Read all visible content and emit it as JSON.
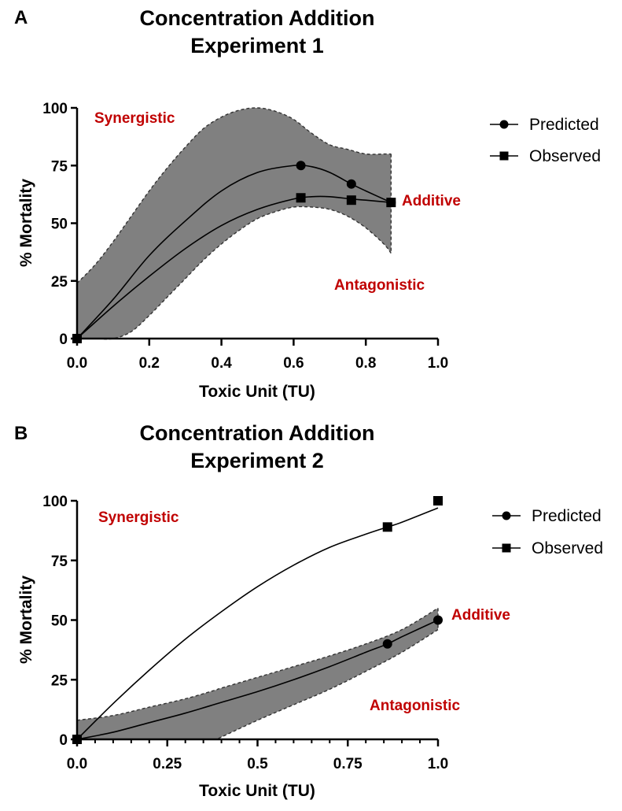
{
  "figure": {
    "colors": {
      "band_fill": "#808080",
      "region_label": "#c00000",
      "line": "#000000"
    }
  },
  "chart_data": [
    {
      "panel": "A",
      "type": "line",
      "title": [
        "Concentration Addition",
        "Experiment 1"
      ],
      "xlabel": "Toxic Unit (TU)",
      "ylabel": "% Mortality",
      "xlim": [
        0,
        1.0
      ],
      "ylim": [
        0,
        100
      ],
      "xticks": [
        0,
        0.2,
        0.4,
        0.6,
        0.8,
        1.0
      ],
      "xtick_labels": [
        "0.0",
        "0.2",
        "0.4",
        "0.6",
        "0.8",
        "1.0"
      ],
      "xminor": [],
      "yticks": [
        0,
        25,
        50,
        75,
        100
      ],
      "ytick_labels": [
        "0",
        "25",
        "50",
        "75",
        "100"
      ],
      "legend": [
        {
          "label": "Predicted",
          "marker": "circle"
        },
        {
          "label": "Observed",
          "marker": "square"
        }
      ],
      "region_labels": {
        "synergistic": "Synergistic",
        "additive": "Additive",
        "antagonistic": "Antagonistic"
      },
      "series": [
        {
          "name": "Predicted",
          "marker": "circle",
          "x": [
            0,
            0.62,
            0.76,
            0.87
          ],
          "y": [
            0,
            75,
            67,
            59
          ]
        },
        {
          "name": "Observed",
          "marker": "square",
          "x": [
            0,
            0.62,
            0.76,
            0.87
          ],
          "y": [
            0,
            61,
            60,
            59
          ]
        }
      ],
      "fit_curves": [
        {
          "name": "Predicted fit",
          "x": [
            0,
            0.1,
            0.2,
            0.3,
            0.4,
            0.5,
            0.6,
            0.65,
            0.7,
            0.76,
            0.8,
            0.87
          ],
          "y": [
            0,
            17,
            36,
            51,
            64,
            72,
            75,
            74.5,
            72,
            67,
            64,
            59
          ]
        },
        {
          "name": "Observed fit",
          "x": [
            0,
            0.1,
            0.2,
            0.3,
            0.4,
            0.5,
            0.6,
            0.65,
            0.7,
            0.76,
            0.8,
            0.87
          ],
          "y": [
            0,
            14,
            27,
            39,
            49,
            56,
            60.5,
            61.5,
            61.5,
            60.5,
            60,
            59
          ]
        }
      ],
      "confidence_band": {
        "x": [
          0,
          0.05,
          0.1,
          0.15,
          0.2,
          0.25,
          0.3,
          0.35,
          0.4,
          0.45,
          0.5,
          0.55,
          0.6,
          0.65,
          0.7,
          0.75,
          0.8,
          0.85,
          0.87
        ],
        "upper": [
          24,
          32,
          42,
          53,
          64,
          74,
          83,
          91,
          96,
          99,
          100,
          98.5,
          95,
          89,
          84,
          82,
          80,
          80,
          80
        ],
        "lower": [
          0,
          0,
          0,
          3,
          10,
          18,
          26,
          34,
          41,
          47,
          52,
          55,
          57,
          57,
          56,
          53,
          48,
          41,
          37
        ]
      }
    },
    {
      "panel": "B",
      "type": "line",
      "title": [
        "Concentration Addition",
        "Experiment 2"
      ],
      "xlabel": "Toxic Unit (TU)",
      "ylabel": "% Mortality",
      "xlim": [
        0,
        1.0
      ],
      "ylim": [
        0,
        100
      ],
      "xticks": [
        0,
        0.25,
        0.5,
        0.75,
        1.0
      ],
      "xtick_labels": [
        "0.0",
        "0.25",
        "0.5",
        "0.75",
        "1.0"
      ],
      "xminor": [
        0.05,
        0.1,
        0.15,
        0.2,
        0.3,
        0.35,
        0.4,
        0.45,
        0.55,
        0.6,
        0.65,
        0.7,
        0.8,
        0.85,
        0.9,
        0.95
      ],
      "yticks": [
        0,
        25,
        50,
        75,
        100
      ],
      "ytick_labels": [
        "0",
        "25",
        "50",
        "75",
        "100"
      ],
      "legend": [
        {
          "label": "Predicted",
          "marker": "circle"
        },
        {
          "label": "Observed",
          "marker": "square"
        }
      ],
      "region_labels": {
        "synergistic": "Synergistic",
        "additive": "Additive",
        "antagonistic": "Antagonistic"
      },
      "series": [
        {
          "name": "Predicted",
          "marker": "circle",
          "x": [
            0,
            0.86,
            1.0
          ],
          "y": [
            0,
            40,
            50
          ]
        },
        {
          "name": "Observed",
          "marker": "square",
          "x": [
            0,
            0.86,
            1.0
          ],
          "y": [
            0,
            89,
            100
          ]
        }
      ],
      "fit_curves": [
        {
          "name": "Predicted fit",
          "x": [
            0,
            0.1,
            0.2,
            0.3,
            0.4,
            0.5,
            0.6,
            0.7,
            0.8,
            0.86,
            0.9,
            1.0
          ],
          "y": [
            0,
            3,
            7,
            11,
            15.5,
            20,
            25,
            30.5,
            36.5,
            40,
            43,
            50
          ]
        },
        {
          "name": "Observed fit",
          "x": [
            0,
            0.1,
            0.2,
            0.3,
            0.4,
            0.5,
            0.6,
            0.7,
            0.8,
            0.86,
            0.9,
            1.0
          ],
          "y": [
            0,
            15,
            29,
            42,
            53.5,
            64,
            73,
            80.5,
            86,
            89,
            91,
            97
          ]
        }
      ],
      "confidence_band": {
        "x": [
          0,
          0.1,
          0.2,
          0.3,
          0.38,
          0.4,
          0.5,
          0.6,
          0.7,
          0.8,
          0.9,
          1.0
        ],
        "upper": [
          8,
          10,
          13.5,
          17,
          20.5,
          21.5,
          26,
          30.5,
          35,
          40,
          46,
          55
        ],
        "lower": [
          0,
          0,
          0,
          0,
          0,
          1,
          8,
          14.5,
          21,
          28.5,
          36.5,
          46
        ]
      }
    }
  ]
}
